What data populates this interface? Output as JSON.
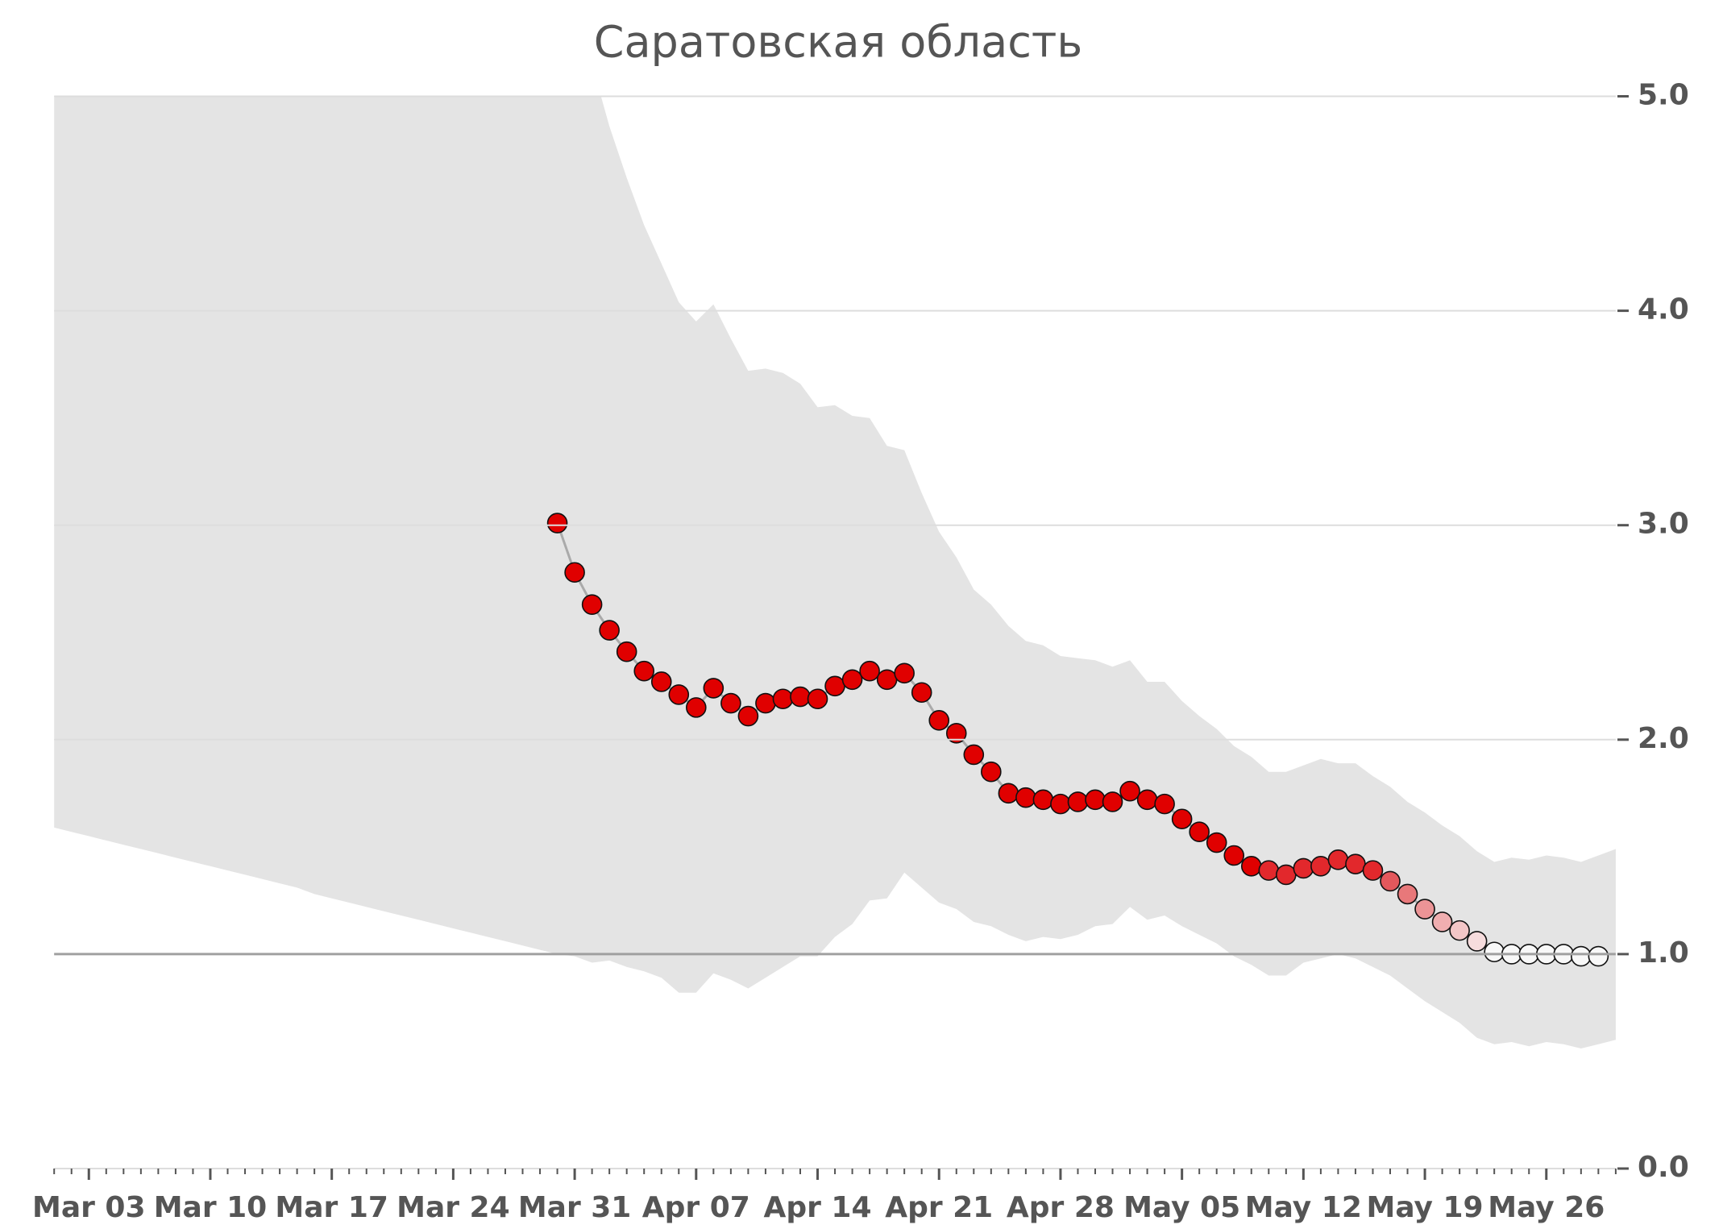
{
  "chart_data": {
    "type": "line",
    "title": "Саратовская область",
    "categories": [
      null,
      null,
      "Mar 03",
      null,
      null,
      null,
      null,
      null,
      null,
      "Mar 10",
      null,
      null,
      null,
      null,
      null,
      null,
      "Mar 17",
      null,
      null,
      null,
      null,
      null,
      null,
      "Mar 24",
      null,
      null,
      null,
      null,
      null,
      null,
      "Mar 31",
      null,
      null,
      null,
      null,
      null,
      null,
      "Apr 07",
      null,
      null,
      null,
      null,
      null,
      null,
      "Apr 14",
      null,
      null,
      null,
      null,
      null,
      null,
      "Apr 21",
      null,
      null,
      null,
      null,
      null,
      null,
      "Apr 28",
      null,
      null,
      null,
      null,
      null,
      null,
      "May 05",
      null,
      null,
      null,
      null,
      null,
      null,
      "May 12",
      null,
      null,
      null,
      null,
      null,
      null,
      "May 19",
      null,
      null,
      null,
      null,
      null,
      null,
      "May 26",
      null,
      null,
      null,
      null
    ],
    "series": [
      {
        "color": "#aaaaaa",
        "values": [
          null,
          null,
          null,
          null,
          null,
          null,
          null,
          null,
          null,
          null,
          null,
          null,
          null,
          null,
          null,
          null,
          null,
          null,
          null,
          null,
          null,
          null,
          null,
          null,
          null,
          null,
          null,
          null,
          null,
          3.01,
          2.78,
          2.63,
          2.51,
          2.41,
          2.32,
          2.27,
          2.21,
          2.15,
          2.24,
          2.17,
          2.11,
          2.17,
          2.19,
          2.2,
          2.19,
          2.25,
          2.28,
          2.32,
          2.28,
          2.31,
          2.22,
          2.09,
          2.03,
          1.93,
          1.85,
          1.75,
          1.73,
          1.72,
          1.7,
          1.71,
          1.72,
          1.71,
          1.76,
          1.72,
          1.7,
          1.63,
          1.57,
          1.52,
          1.46,
          1.41,
          1.39,
          1.37,
          1.4,
          1.41,
          1.44,
          1.42,
          1.39,
          1.34,
          1.28,
          1.21,
          1.15,
          1.11,
          1.06,
          1.01,
          1.0,
          1.0,
          1.0,
          1.0,
          0.99,
          0.99,
          null
        ],
        "point_colors": [
          null,
          null,
          null,
          null,
          null,
          null,
          null,
          null,
          null,
          null,
          null,
          null,
          null,
          null,
          null,
          null,
          null,
          null,
          null,
          null,
          null,
          null,
          null,
          null,
          null,
          null,
          null,
          null,
          null,
          "#e00000",
          "#e00000",
          "#e00000",
          "#e00000",
          "#e00000",
          "#e00000",
          "#e00000",
          "#e00000",
          "#e00000",
          "#e00000",
          "#e00000",
          "#e00000",
          "#e00000",
          "#e00000",
          "#e00000",
          "#e00000",
          "#e00000",
          "#e00000",
          "#e00000",
          "#e00000",
          "#e00000",
          "#e00000",
          "#e00000",
          "#e00000",
          "#e00000",
          "#e00000",
          "#e00000",
          "#e00000",
          "#e00000",
          "#e00000",
          "#e00000",
          "#e00000",
          "#e00000",
          "#e00000",
          "#e00000",
          "#e00000",
          "#e00000",
          "#e00000",
          "#e00000",
          "#e00000",
          "#e00000",
          "#e2282c",
          "#e2282c",
          "#e2282c",
          "#e2282c",
          "#e2282c",
          "#e2282c",
          "#e2282c",
          "#e4585c",
          "#e8787a",
          "#ec9496",
          "#f0aeb0",
          "#f3c6c7",
          "#f6dcdd",
          "#f8f8f8",
          "#f8f8f8",
          "#f8f8f8",
          "#f8f8f8",
          "#f8f8f8",
          "#f8f8f8",
          "#f8f8f8",
          null
        ]
      }
    ],
    "band": {
      "color": "#e4e4e4",
      "upper": [
        10,
        10,
        10,
        10,
        10,
        10,
        10,
        10,
        10,
        10,
        10,
        10,
        10,
        10,
        10,
        10,
        10,
        10,
        10,
        10,
        10,
        10,
        10,
        10,
        10,
        10,
        10,
        10,
        10,
        6.5,
        5.6,
        5.15,
        4.86,
        4.62,
        4.4,
        4.22,
        4.04,
        3.95,
        4.03,
        3.87,
        3.72,
        3.73,
        3.71,
        3.66,
        3.55,
        3.56,
        3.51,
        3.5,
        3.37,
        3.35,
        3.15,
        2.97,
        2.85,
        2.7,
        2.63,
        2.53,
        2.46,
        2.44,
        2.39,
        2.38,
        2.37,
        2.34,
        2.37,
        2.27,
        2.27,
        2.18,
        2.11,
        2.05,
        1.97,
        1.92,
        1.85,
        1.85,
        1.88,
        1.91,
        1.89,
        1.89,
        1.83,
        1.78,
        1.71,
        1.66,
        1.6,
        1.55,
        1.48,
        1.43,
        1.45,
        1.44,
        1.46,
        1.45,
        1.43,
        1.46,
        1.49
      ],
      "lower": [
        1.59,
        1.57,
        1.55,
        1.53,
        1.51,
        1.49,
        1.47,
        1.45,
        1.43,
        1.41,
        1.39,
        1.37,
        1.35,
        1.33,
        1.31,
        1.28,
        1.26,
        1.24,
        1.22,
        1.2,
        1.18,
        1.16,
        1.14,
        1.12,
        1.1,
        1.08,
        1.06,
        1.04,
        1.02,
        1.0,
        0.99,
        0.96,
        0.97,
        0.94,
        0.92,
        0.89,
        0.82,
        0.82,
        0.91,
        0.88,
        0.84,
        0.89,
        0.94,
        0.99,
        0.99,
        1.08,
        1.14,
        1.25,
        1.26,
        1.38,
        1.31,
        1.24,
        1.21,
        1.15,
        1.13,
        1.09,
        1.06,
        1.08,
        1.07,
        1.09,
        1.13,
        1.14,
        1.22,
        1.16,
        1.18,
        1.13,
        1.09,
        1.05,
        0.99,
        0.95,
        0.9,
        0.9,
        0.96,
        0.98,
        1.0,
        0.98,
        0.94,
        0.9,
        0.84,
        0.78,
        0.73,
        0.68,
        0.61,
        0.58,
        0.59,
        0.57,
        0.59,
        0.58,
        0.56,
        0.58,
        0.6
      ]
    },
    "reference_line": {
      "value": 1,
      "color": "#a0a0a0"
    },
    "ylim": [
      0,
      5
    ],
    "yticks": [
      {
        "value": 0,
        "label": "0.0"
      },
      {
        "value": 1,
        "label": "1.0"
      },
      {
        "value": 2,
        "label": "2.0"
      },
      {
        "value": 3,
        "label": "3.0"
      },
      {
        "value": 4,
        "label": "4.0"
      },
      {
        "value": 5,
        "label": "5.0"
      }
    ],
    "grid": true,
    "y_axis_side": "right"
  }
}
